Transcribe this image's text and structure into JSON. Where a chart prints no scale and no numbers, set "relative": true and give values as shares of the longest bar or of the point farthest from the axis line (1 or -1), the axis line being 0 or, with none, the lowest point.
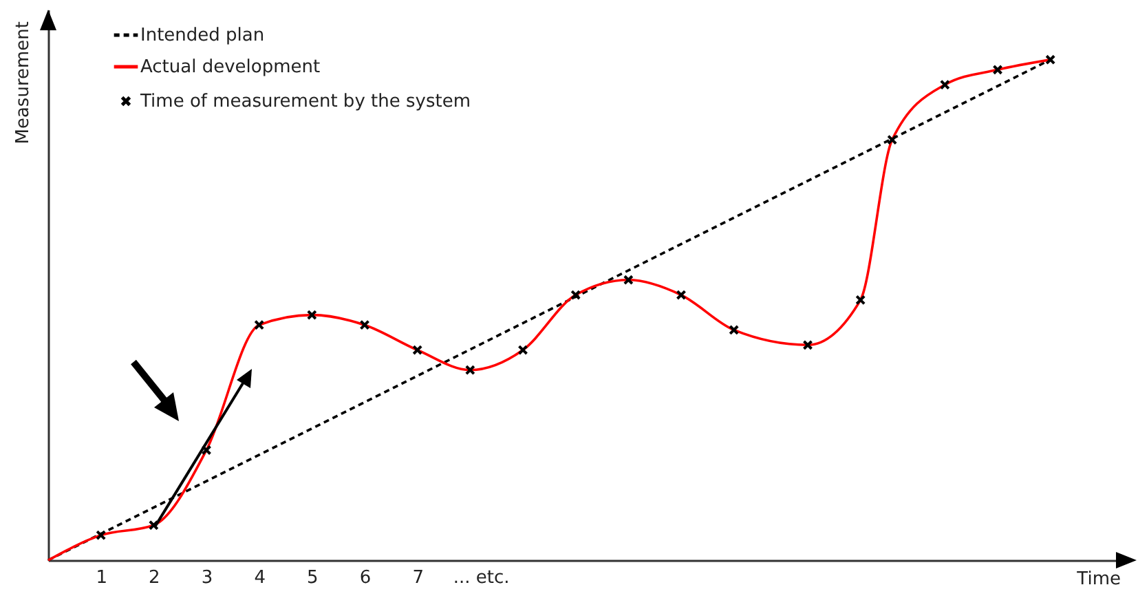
{
  "chart_data": {
    "type": "line",
    "relative": true,
    "xlabel": "Time",
    "ylabel": "Measurement",
    "xlim": [
      0,
      20.4
    ],
    "xticks": [
      1,
      2,
      3,
      4,
      5,
      6,
      7,
      {
        "value": 8.2,
        "label": "... etc."
      }
    ],
    "legend": "top left",
    "grid": false,
    "series": [
      {
        "name": "Intended plan",
        "color": "#000000",
        "line_style": "dashed",
        "x": [
          0,
          19
        ],
        "values": [
          0,
          1
        ]
      },
      {
        "name": "Actual development",
        "color": "#ff0000",
        "line_style": "solid",
        "x": [
          0,
          1,
          2,
          3,
          4,
          5,
          6,
          7,
          8,
          9,
          10,
          11,
          12,
          13,
          14.4,
          15.4,
          16,
          17,
          18,
          19
        ],
        "values": [
          0,
          0.05,
          0.07,
          0.22,
          0.47,
          0.49,
          0.47,
          0.42,
          0.38,
          0.42,
          0.53,
          0.56,
          0.53,
          0.46,
          0.43,
          0.52,
          0.84,
          0.95,
          0.98,
          1
        ]
      },
      {
        "name": "Time of measurement by the system",
        "type": "scatter",
        "color": "#000000",
        "marker": "cross",
        "x": [
          1,
          2,
          3,
          4,
          5,
          6,
          7,
          8,
          9,
          10,
          11,
          12,
          13,
          14.4,
          15.4,
          16,
          17,
          18,
          19
        ],
        "values": [
          0.05,
          0.07,
          0.22,
          0.47,
          0.49,
          0.47,
          0.42,
          0.38,
          0.42,
          0.53,
          0.56,
          0.53,
          0.46,
          0.43,
          0.52,
          0.84,
          0.95,
          0.98,
          1
        ]
      }
    ]
  }
}
